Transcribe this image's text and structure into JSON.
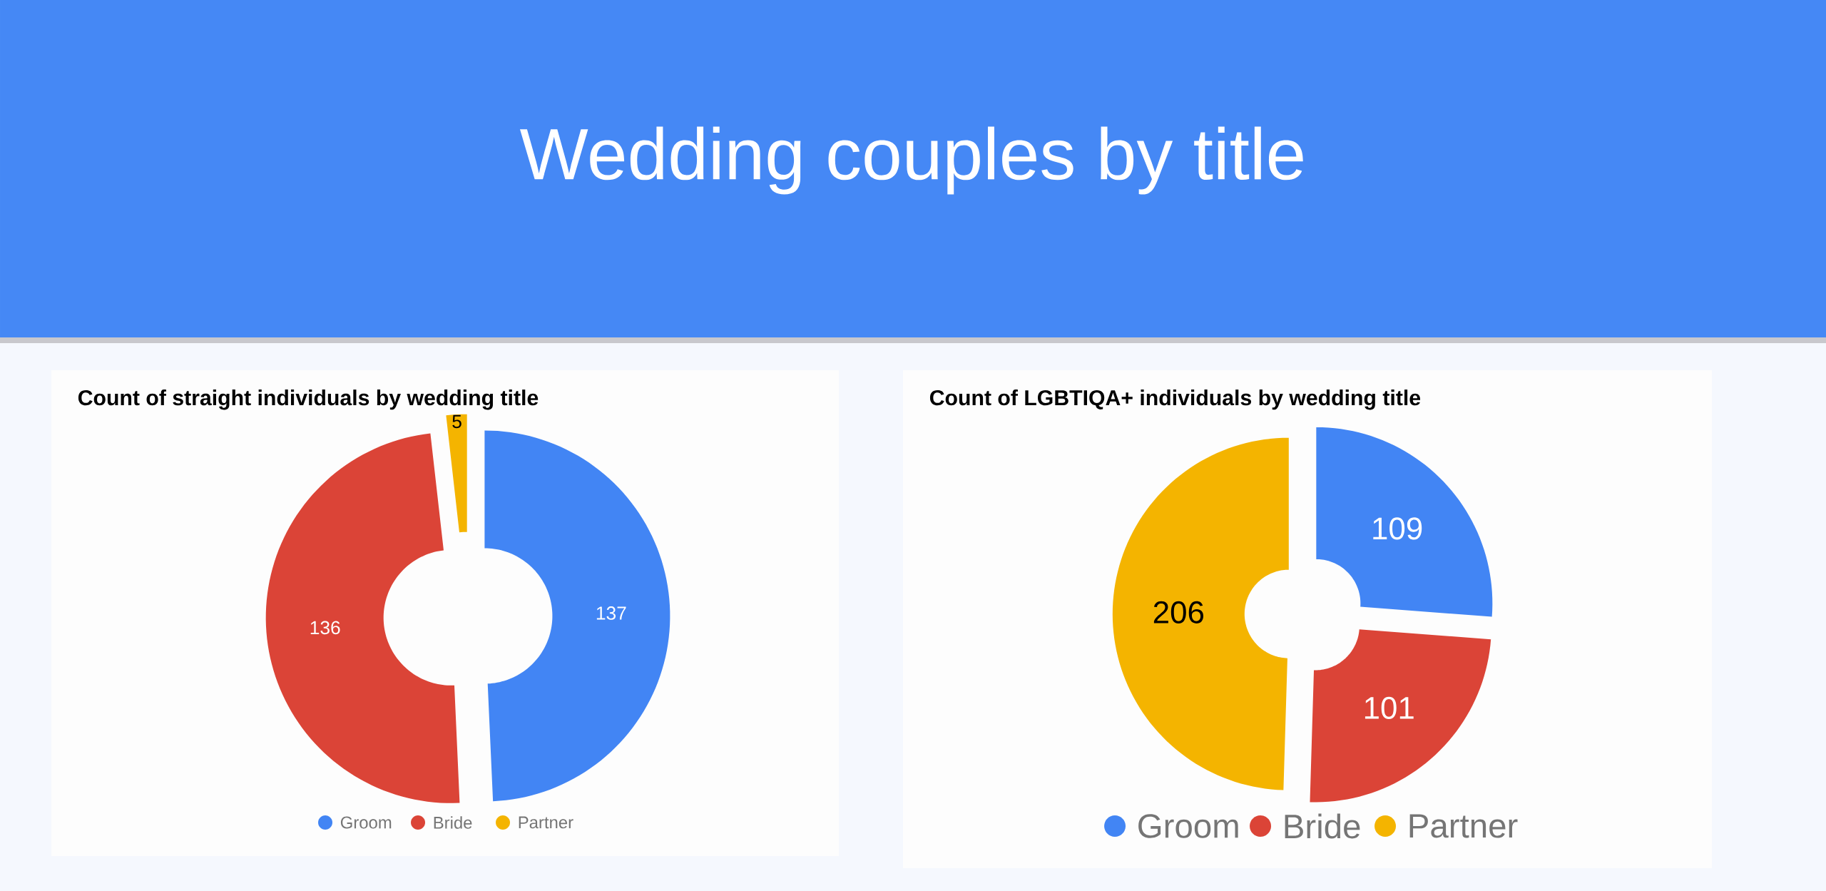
{
  "chart_data": [
    {
      "type": "donut",
      "title": "Count of straight individuals by wedding title",
      "annotations": [
        "Wedding couples by title"
      ],
      "categories": [
        "Groom",
        "Bride",
        "Partner"
      ],
      "values": [
        137,
        136,
        5
      ],
      "colors": [
        "#4285f4",
        "#db4437",
        "#f4b400"
      ],
      "data_labels": true,
      "legend": "bottom"
    },
    {
      "type": "donut",
      "title": "Count of LGBTIQA+ individuals by wedding title",
      "categories": [
        "Groom",
        "Bride",
        "Partner"
      ],
      "values": [
        109,
        101,
        206
      ],
      "colors": [
        "#4285f4",
        "#db4437",
        "#f4b400"
      ],
      "data_labels": true,
      "legend": "bottom"
    }
  ]
}
